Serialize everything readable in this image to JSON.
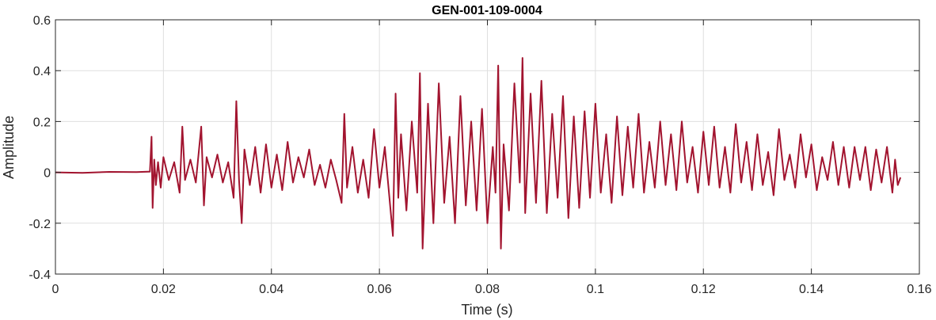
{
  "chart_data": {
    "type": "line",
    "title": "GEN-001-109-0004",
    "xlabel": "Time (s)",
    "ylabel": "Amplitude",
    "xlim": [
      0,
      0.16
    ],
    "ylim": [
      -0.4,
      0.6
    ],
    "xticks": [
      0,
      0.02,
      0.04,
      0.06,
      0.08,
      0.1,
      0.12,
      0.14,
      0.16
    ],
    "xtick_labels": [
      "0",
      "0.02",
      "0.04",
      "0.06",
      "0.08",
      "0.1",
      "0.12",
      "0.14",
      "0.16"
    ],
    "yticks": [
      -0.4,
      -0.2,
      0,
      0.2,
      0.4,
      0.6
    ],
    "ytick_labels": [
      "-0.4",
      "-0.2",
      "0",
      "0.2",
      "0.4",
      "0.6"
    ],
    "grid": true,
    "color": "#a2142f",
    "series": [
      {
        "x": [
          0,
          0.005,
          0.01,
          0.015,
          0.0175,
          0.0178,
          0.018,
          0.0183,
          0.0186,
          0.019,
          0.0195,
          0.02,
          0.021,
          0.022,
          0.023,
          0.0235,
          0.024,
          0.025,
          0.026,
          0.027,
          0.0275,
          0.028,
          0.029,
          0.03,
          0.031,
          0.032,
          0.033,
          0.0335,
          0.034,
          0.0345,
          0.035,
          0.036,
          0.037,
          0.038,
          0.039,
          0.04,
          0.041,
          0.042,
          0.043,
          0.044,
          0.045,
          0.046,
          0.047,
          0.048,
          0.049,
          0.05,
          0.051,
          0.052,
          0.053,
          0.0535,
          0.054,
          0.055,
          0.056,
          0.057,
          0.058,
          0.059,
          0.06,
          0.061,
          0.0625,
          0.063,
          0.0635,
          0.064,
          0.065,
          0.066,
          0.067,
          0.0675,
          0.068,
          0.069,
          0.07,
          0.071,
          0.072,
          0.073,
          0.074,
          0.075,
          0.076,
          0.077,
          0.078,
          0.079,
          0.08,
          0.081,
          0.0815,
          0.082,
          0.0825,
          0.083,
          0.084,
          0.085,
          0.086,
          0.0865,
          0.087,
          0.088,
          0.089,
          0.09,
          0.091,
          0.092,
          0.093,
          0.094,
          0.095,
          0.096,
          0.097,
          0.098,
          0.099,
          0.1,
          0.101,
          0.102,
          0.103,
          0.104,
          0.105,
          0.106,
          0.107,
          0.108,
          0.109,
          0.11,
          0.111,
          0.112,
          0.113,
          0.114,
          0.115,
          0.116,
          0.117,
          0.118,
          0.119,
          0.12,
          0.121,
          0.122,
          0.123,
          0.124,
          0.125,
          0.126,
          0.127,
          0.128,
          0.129,
          0.13,
          0.131,
          0.132,
          0.133,
          0.134,
          0.135,
          0.136,
          0.137,
          0.138,
          0.139,
          0.14,
          0.141,
          0.142,
          0.143,
          0.144,
          0.145,
          0.146,
          0.147,
          0.148,
          0.149,
          0.15,
          0.151,
          0.152,
          0.153,
          0.154,
          0.155,
          0.1555,
          0.156,
          0.1565
        ],
        "y": [
          0,
          -0.002,
          0.002,
          0.001,
          0.003,
          0.14,
          -0.14,
          0.05,
          -0.05,
          0.04,
          -0.06,
          0.06,
          -0.03,
          0.04,
          -0.08,
          0.18,
          -0.03,
          0.05,
          -0.04,
          0.18,
          -0.13,
          0.06,
          -0.02,
          0.07,
          -0.04,
          0.04,
          -0.1,
          0.28,
          -0.03,
          -0.2,
          0.09,
          -0.05,
          0.1,
          -0.08,
          0.11,
          -0.06,
          0.07,
          -0.07,
          0.12,
          -0.04,
          0.06,
          -0.02,
          0.09,
          -0.05,
          0.03,
          -0.06,
          0.05,
          -0.03,
          -0.12,
          0.23,
          -0.06,
          0.1,
          -0.08,
          0.05,
          -0.1,
          0.17,
          -0.06,
          0.1,
          -0.25,
          0.31,
          -0.1,
          0.15,
          -0.15,
          0.2,
          -0.08,
          0.39,
          -0.3,
          0.27,
          -0.2,
          0.35,
          -0.12,
          0.14,
          -0.2,
          0.3,
          -0.13,
          0.2,
          -0.15,
          0.25,
          -0.2,
          0.1,
          -0.08,
          0.42,
          -0.3,
          0.11,
          -0.15,
          0.35,
          -0.04,
          0.45,
          -0.16,
          0.31,
          -0.12,
          0.36,
          -0.16,
          0.23,
          -0.1,
          0.3,
          -0.18,
          0.22,
          -0.14,
          0.24,
          -0.1,
          0.27,
          -0.08,
          0.15,
          -0.12,
          0.22,
          -0.09,
          0.18,
          -0.06,
          0.23,
          -0.08,
          0.12,
          -0.06,
          0.2,
          -0.05,
          0.15,
          -0.07,
          0.2,
          -0.04,
          0.1,
          -0.08,
          0.16,
          -0.05,
          0.18,
          -0.06,
          0.1,
          -0.08,
          0.19,
          -0.04,
          0.12,
          -0.07,
          0.15,
          -0.05,
          0.08,
          -0.09,
          0.17,
          -0.03,
          0.07,
          -0.06,
          0.15,
          -0.02,
          0.11,
          -0.07,
          0.06,
          -0.03,
          0.12,
          -0.05,
          0.1,
          -0.06,
          0.1,
          -0.03,
          0.1,
          -0.07,
          0.09,
          -0.04,
          0.1,
          -0.08,
          0.05,
          -0.05,
          -0.02
        ]
      }
    ]
  }
}
